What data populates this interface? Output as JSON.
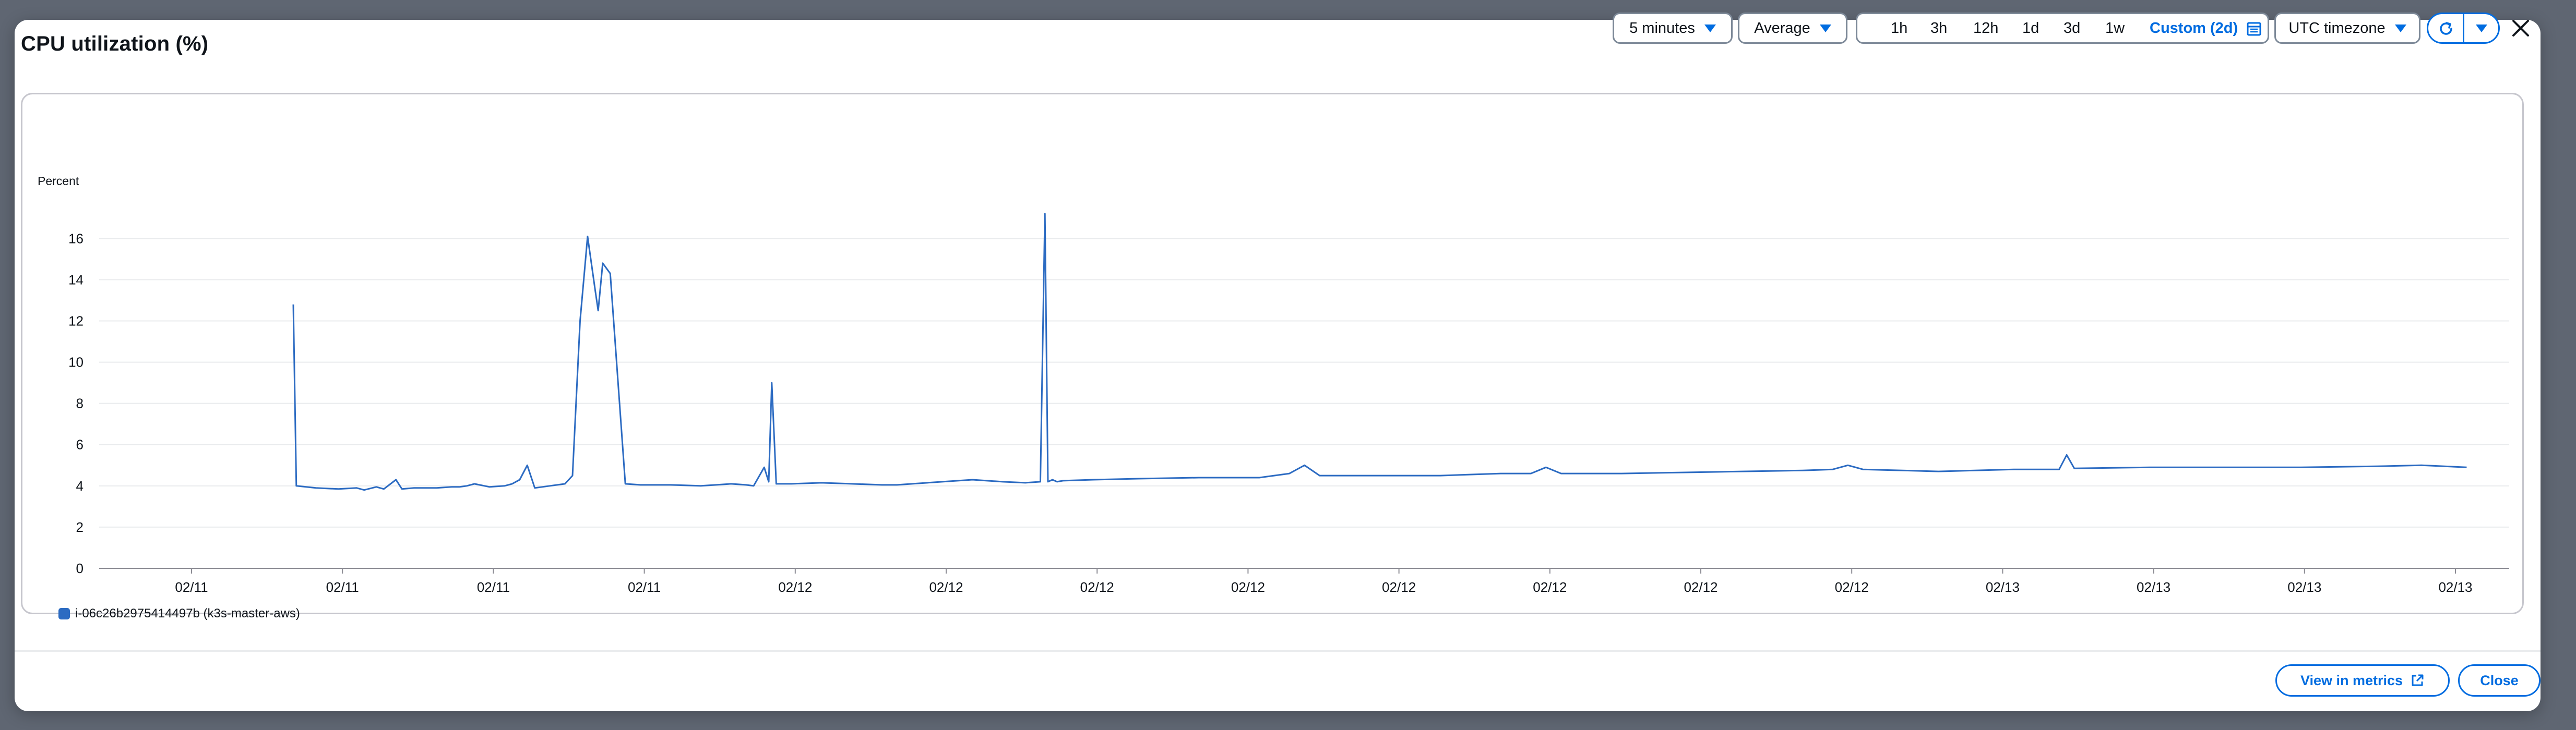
{
  "modal": {
    "title": "CPU utilization (%)",
    "period": "5 minutes",
    "statistic": "Average",
    "time_ranges": [
      "1h",
      "3h",
      "12h",
      "1d",
      "3d",
      "1w"
    ],
    "custom_range": "Custom (2d)",
    "timezone": "UTC timezone"
  },
  "footer": {
    "view_in_metrics": "View in metrics",
    "close": "Close"
  },
  "colors": {
    "accent": "#006ce0",
    "series": "#2c6bc2"
  },
  "icons": [
    "calendar-icon",
    "refresh-icon",
    "close-icon",
    "external-link-icon",
    "caret-down-icon"
  ],
  "chart_data": {
    "type": "line",
    "ylabel": "Percent",
    "ylim": [
      0,
      17.5
    ],
    "yticks": [
      0,
      2,
      4,
      6,
      8,
      10,
      12,
      14,
      16
    ],
    "xtick_labels": [
      "02/11",
      "02/11",
      "02/11",
      "02/11",
      "02/12",
      "02/12",
      "02/12",
      "02/12",
      "02/12",
      "02/12",
      "02/12",
      "02/12",
      "02/13",
      "02/13",
      "02/13",
      "02/13"
    ],
    "grid": true,
    "legend_position": "bottom-left",
    "series": [
      {
        "name": "i-06c26b2975414497b (k3s-master-aws)",
        "x": [
          0,
          0.02,
          0.15,
          0.3,
          0.42,
          0.47,
          0.55,
          0.6,
          0.68,
          0.72,
          0.8,
          0.95,
          1.05,
          1.1,
          1.15,
          1.2,
          1.3,
          1.4,
          1.45,
          1.5,
          1.55,
          1.6,
          1.7,
          1.8,
          1.85,
          1.9,
          1.95,
          2.0,
          2.02,
          2.05,
          2.1,
          2.2,
          2.3,
          2.5,
          2.7,
          2.8,
          2.9,
          3.0,
          3.05,
          3.12,
          3.15,
          3.17,
          3.2,
          3.3,
          3.5,
          3.7,
          3.9,
          4.0,
          4.1,
          4.3,
          4.5,
          4.7,
          4.85,
          4.95,
          4.98,
          5.0,
          5.03,
          5.06,
          5.1,
          5.3,
          5.6,
          6.0,
          6.4,
          6.6,
          6.7,
          6.8,
          7.2,
          7.6,
          8.0,
          8.2,
          8.3,
          8.4,
          8.8,
          9.2,
          9.6,
          10.0,
          10.2,
          10.3,
          10.4,
          10.9,
          11.4,
          11.7,
          11.75,
          11.8,
          12.3,
          12.8,
          13.3,
          13.8,
          14.1,
          14.4
        ],
        "values": [
          12.8,
          4.0,
          3.9,
          3.85,
          3.9,
          3.8,
          3.95,
          3.85,
          4.3,
          3.85,
          3.9,
          3.9,
          3.95,
          3.95,
          4.0,
          4.1,
          3.95,
          4.0,
          4.1,
          4.3,
          5.0,
          3.9,
          4.0,
          4.1,
          4.5,
          12.0,
          16.1,
          13.5,
          12.5,
          14.8,
          14.3,
          4.1,
          4.05,
          4.05,
          4.0,
          4.05,
          4.1,
          4.05,
          4.0,
          4.9,
          4.2,
          9.0,
          4.1,
          4.1,
          4.15,
          4.1,
          4.05,
          4.05,
          4.1,
          4.2,
          4.3,
          4.2,
          4.15,
          4.2,
          17.2,
          4.2,
          4.3,
          4.2,
          4.25,
          4.3,
          4.35,
          4.4,
          4.4,
          4.6,
          5.0,
          4.5,
          4.5,
          4.5,
          4.6,
          4.6,
          4.9,
          4.6,
          4.6,
          4.65,
          4.7,
          4.75,
          4.8,
          5.0,
          4.8,
          4.7,
          4.8,
          4.8,
          5.5,
          4.85,
          4.9,
          4.9,
          4.9,
          4.95,
          5.0,
          4.9
        ]
      }
    ]
  }
}
